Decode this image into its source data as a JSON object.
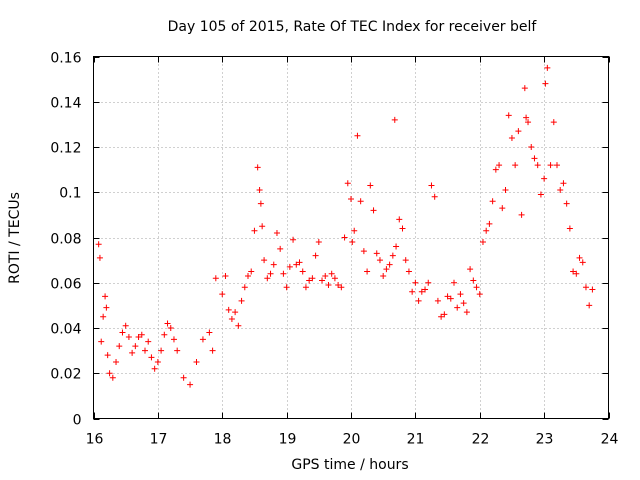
{
  "chart_data": {
    "type": "scatter",
    "title": "Day 105 of 2015, Rate Of TEC Index for receiver belf",
    "xlabel": "GPS time / hours",
    "ylabel": "ROTI / TECUs",
    "xlim": [
      16,
      24
    ],
    "ylim": [
      0,
      0.16
    ],
    "x_ticks": [
      "16",
      "17",
      "18",
      "19",
      "20",
      "21",
      "22",
      "23",
      "24"
    ],
    "y_ticks": [
      "0",
      "0.02",
      "0.04",
      "0.06",
      "0.08",
      "0.1",
      "0.12",
      "0.14",
      "0.16"
    ],
    "grid": true,
    "marker": "plus",
    "color": "#ff0000",
    "series": [
      {
        "name": "ROTI",
        "x": [
          16.08,
          16.1,
          16.12,
          16.15,
          16.18,
          16.2,
          16.22,
          16.25,
          16.3,
          16.35,
          16.4,
          16.45,
          16.5,
          16.55,
          16.6,
          16.65,
          16.7,
          16.75,
          16.8,
          16.85,
          16.9,
          16.95,
          17.0,
          17.05,
          17.1,
          17.15,
          17.2,
          17.25,
          17.3,
          17.4,
          17.5,
          17.6,
          17.7,
          17.8,
          17.85,
          17.9,
          18.0,
          18.05,
          18.1,
          18.15,
          18.2,
          18.25,
          18.3,
          18.35,
          18.4,
          18.45,
          18.5,
          18.55,
          18.58,
          18.6,
          18.62,
          18.65,
          18.7,
          18.75,
          18.8,
          18.85,
          18.9,
          18.95,
          19.0,
          19.05,
          19.1,
          19.15,
          19.2,
          19.25,
          19.3,
          19.35,
          19.4,
          19.45,
          19.5,
          19.55,
          19.6,
          19.65,
          19.7,
          19.75,
          19.8,
          19.85,
          19.9,
          19.95,
          20.0,
          20.02,
          20.05,
          20.1,
          20.15,
          20.2,
          20.25,
          20.3,
          20.35,
          20.4,
          20.45,
          20.5,
          20.55,
          20.6,
          20.65,
          20.68,
          20.7,
          20.75,
          20.8,
          20.85,
          20.9,
          20.95,
          21.0,
          21.05,
          21.1,
          21.15,
          21.2,
          21.25,
          21.3,
          21.35,
          21.4,
          21.45,
          21.5,
          21.55,
          21.6,
          21.65,
          21.7,
          21.75,
          21.8,
          21.85,
          21.9,
          21.95,
          22.0,
          22.05,
          22.1,
          22.15,
          22.2,
          22.25,
          22.3,
          22.35,
          22.4,
          22.45,
          22.5,
          22.55,
          22.6,
          22.65,
          22.7,
          22.72,
          22.75,
          22.8,
          22.85,
          22.9,
          22.95,
          23.0,
          23.02,
          23.05,
          23.1,
          23.15,
          23.2,
          23.25,
          23.3,
          23.35,
          23.4,
          23.45,
          23.5,
          23.55,
          23.6,
          23.65,
          23.7,
          23.75
        ],
        "y": [
          0.077,
          0.071,
          0.034,
          0.045,
          0.054,
          0.049,
          0.028,
          0.02,
          0.018,
          0.025,
          0.032,
          0.038,
          0.041,
          0.036,
          0.029,
          0.032,
          0.036,
          0.037,
          0.03,
          0.034,
          0.027,
          0.022,
          0.025,
          0.03,
          0.037,
          0.042,
          0.04,
          0.035,
          0.03,
          0.018,
          0.015,
          0.025,
          0.035,
          0.038,
          0.03,
          0.062,
          0.055,
          0.063,
          0.048,
          0.044,
          0.047,
          0.041,
          0.052,
          0.058,
          0.063,
          0.065,
          0.083,
          0.111,
          0.101,
          0.095,
          0.085,
          0.07,
          0.062,
          0.064,
          0.068,
          0.082,
          0.075,
          0.064,
          0.058,
          0.067,
          0.079,
          0.068,
          0.069,
          0.065,
          0.058,
          0.061,
          0.062,
          0.072,
          0.078,
          0.061,
          0.063,
          0.059,
          0.064,
          0.062,
          0.059,
          0.058,
          0.08,
          0.104,
          0.097,
          0.078,
          0.083,
          0.125,
          0.096,
          0.074,
          0.065,
          0.103,
          0.092,
          0.073,
          0.07,
          0.063,
          0.066,
          0.068,
          0.072,
          0.132,
          0.076,
          0.088,
          0.084,
          0.07,
          0.065,
          0.056,
          0.06,
          0.052,
          0.056,
          0.057,
          0.06,
          0.103,
          0.098,
          0.052,
          0.045,
          0.046,
          0.054,
          0.053,
          0.06,
          0.049,
          0.055,
          0.051,
          0.047,
          0.066,
          0.061,
          0.058,
          0.055,
          0.078,
          0.083,
          0.086,
          0.096,
          0.11,
          0.112,
          0.093,
          0.101,
          0.134,
          0.124,
          0.112,
          0.127,
          0.09,
          0.146,
          0.133,
          0.131,
          0.12,
          0.115,
          0.112,
          0.099,
          0.106,
          0.148,
          0.155,
          0.112,
          0.131,
          0.112,
          0.101,
          0.104,
          0.095,
          0.084,
          0.065,
          0.064,
          0.071,
          0.069,
          0.058,
          0.05,
          0.057
        ]
      }
    ]
  }
}
